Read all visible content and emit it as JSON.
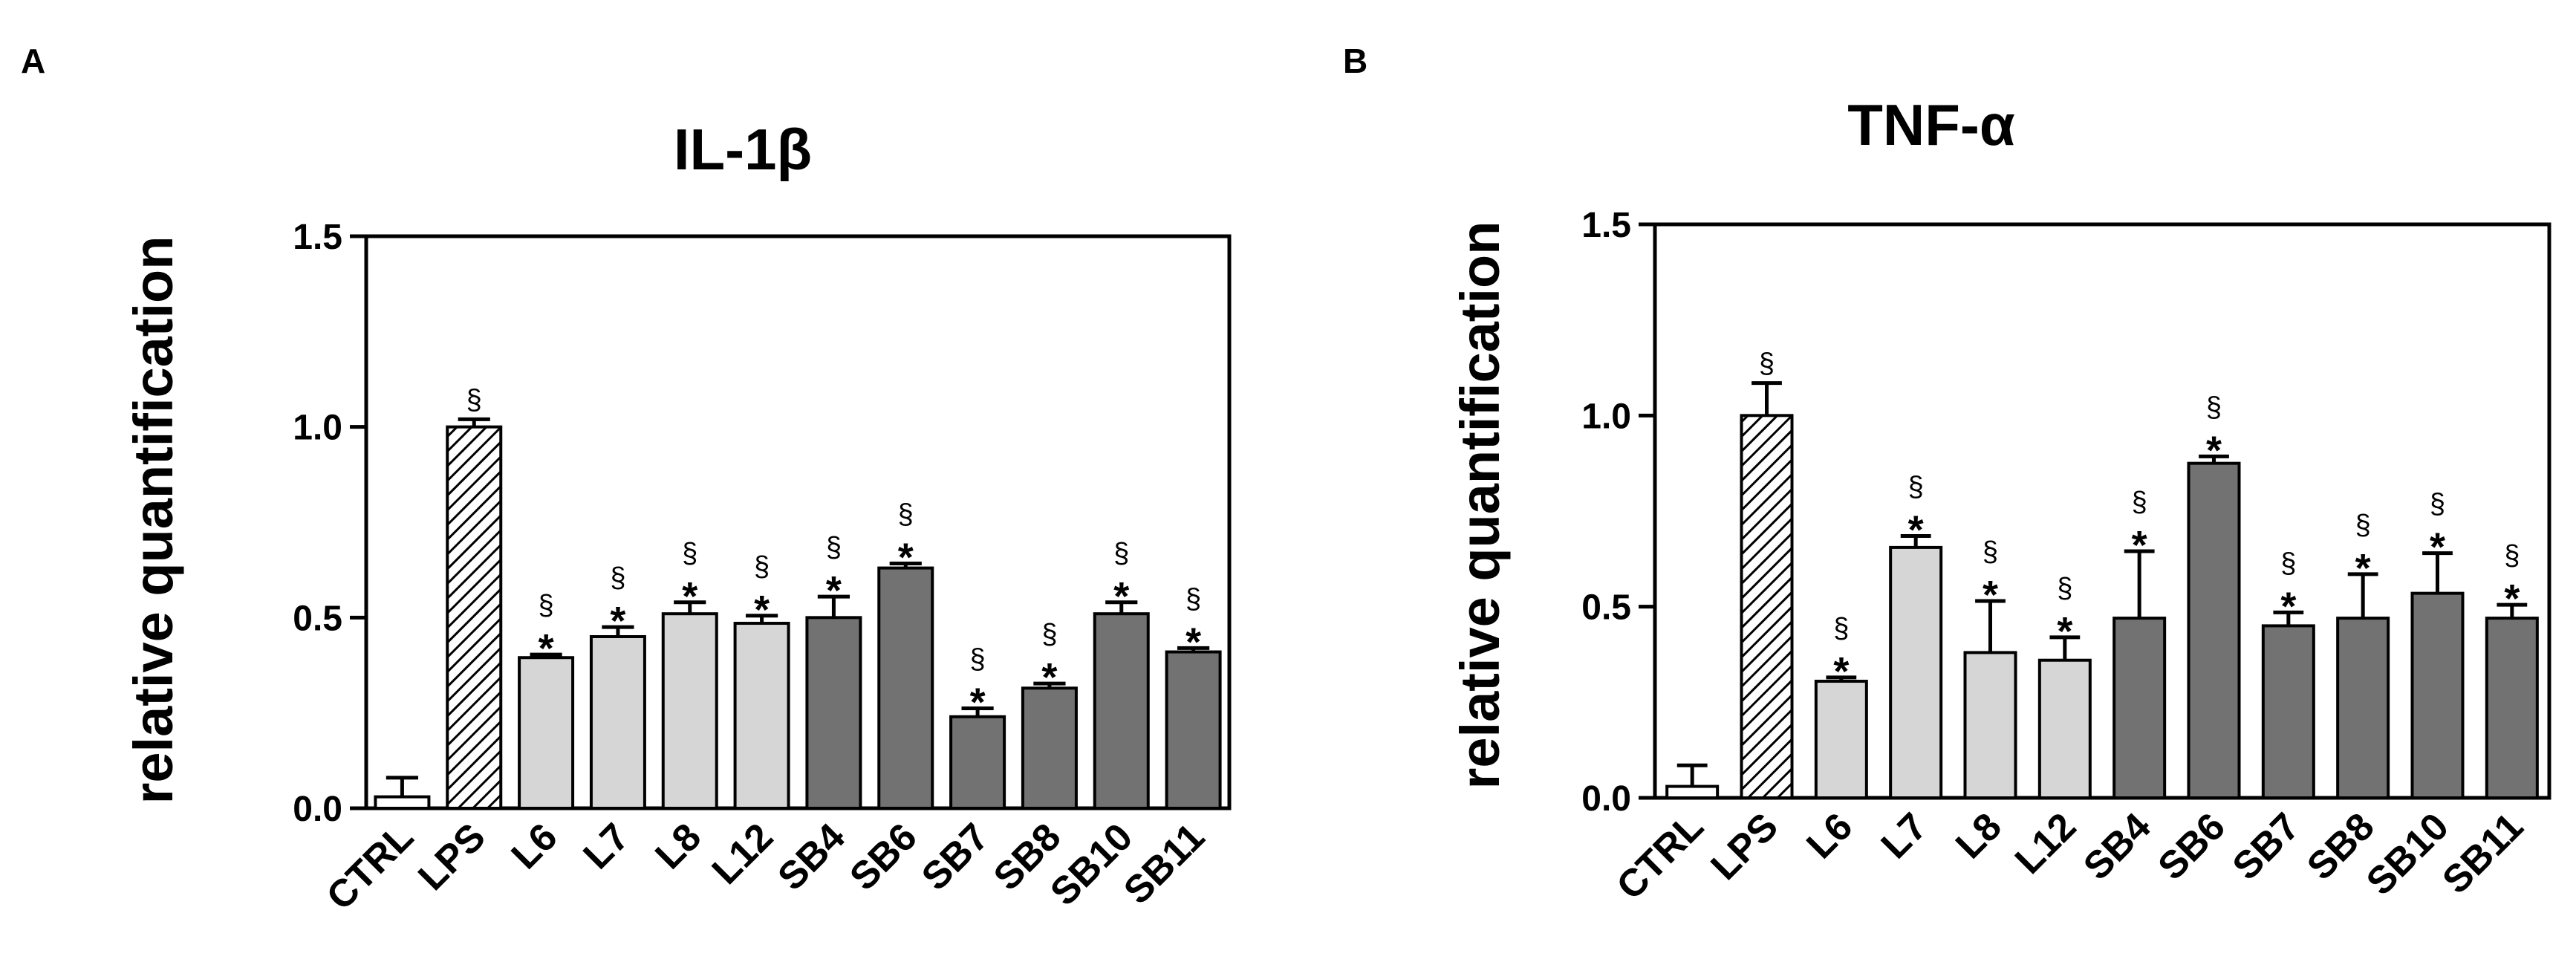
{
  "chart_data": [
    {
      "panel": "A",
      "type": "bar",
      "title": "IL-1β",
      "ylabel": "relative quantification",
      "xlabel": "",
      "ylim": [
        0,
        1.5
      ],
      "yticks": [
        "0.0",
        "0.5",
        "1.0",
        "1.5"
      ],
      "categories": [
        "CTRL",
        "LPS",
        "L6",
        "L7",
        "L8",
        "L12",
        "SB4",
        "SB6",
        "SB7",
        "SB8",
        "SB10",
        "SB11"
      ],
      "values": [
        0.03,
        1.0,
        0.395,
        0.45,
        0.51,
        0.485,
        0.5,
        0.63,
        0.24,
        0.315,
        0.51,
        0.41
      ],
      "errors": [
        0.05,
        0.02,
        0.008,
        0.025,
        0.03,
        0.02,
        0.055,
        0.012,
        0.022,
        0.012,
        0.03,
        0.01
      ],
      "fills": [
        "white",
        "hatch",
        "light",
        "light",
        "light",
        "light",
        "dark",
        "dark",
        "dark",
        "dark",
        "dark",
        "dark"
      ],
      "marks": [
        [
          "",
          ""
        ],
        [
          "§",
          ""
        ],
        [
          "§",
          "*"
        ],
        [
          "§",
          "*"
        ],
        [
          "§",
          "*"
        ],
        [
          "§",
          "*"
        ],
        [
          "§",
          "*"
        ],
        [
          "§",
          "*"
        ],
        [
          "§",
          "*"
        ],
        [
          "§",
          "*"
        ],
        [
          "§",
          "*"
        ],
        [
          "§",
          "*"
        ]
      ]
    },
    {
      "panel": "B",
      "type": "bar",
      "title": "TNF-α",
      "ylabel": "relative quantification",
      "xlabel": "",
      "ylim": [
        0,
        1.5
      ],
      "yticks": [
        "0.0",
        "0.5",
        "1.0",
        "1.5"
      ],
      "categories": [
        "CTRL",
        "LPS",
        "L6",
        "L7",
        "L8",
        "L12",
        "SB4",
        "SB6",
        "SB7",
        "SB8",
        "SB10",
        "SB11"
      ],
      "values": [
        0.03,
        1.0,
        0.305,
        0.655,
        0.38,
        0.36,
        0.47,
        0.875,
        0.45,
        0.47,
        0.535,
        0.47
      ],
      "errors": [
        0.055,
        0.085,
        0.01,
        0.03,
        0.135,
        0.06,
        0.175,
        0.018,
        0.035,
        0.115,
        0.105,
        0.035
      ],
      "fills": [
        "white",
        "hatch",
        "light",
        "light",
        "light",
        "light",
        "dark",
        "dark",
        "dark",
        "dark",
        "dark",
        "dark"
      ],
      "marks": [
        [
          "",
          ""
        ],
        [
          "§",
          ""
        ],
        [
          "§",
          "*"
        ],
        [
          "§",
          "*"
        ],
        [
          "§",
          "*"
        ],
        [
          "§",
          "*"
        ],
        [
          "§",
          "*"
        ],
        [
          "§",
          "*"
        ],
        [
          "§",
          "*"
        ],
        [
          "§",
          "*"
        ],
        [
          "§",
          "*"
        ],
        [
          "§",
          "*"
        ]
      ]
    }
  ],
  "colors": {
    "light": "#d6d6d6",
    "dark": "#727272",
    "white": "#ffffff",
    "stroke": "#000000"
  }
}
